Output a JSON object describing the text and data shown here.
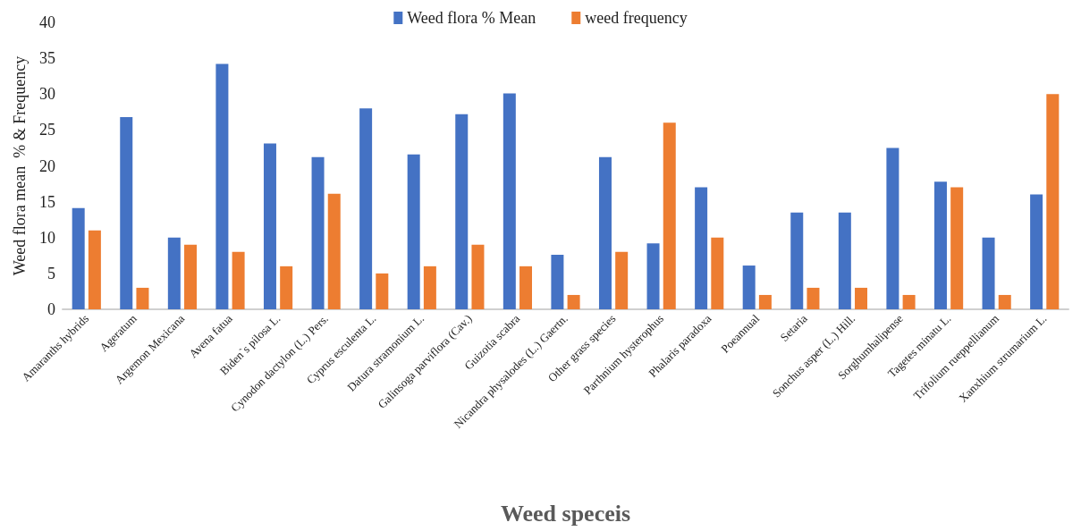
{
  "chart_data": {
    "type": "bar",
    "xlabel": "Weed speceis",
    "ylabel": "Weed flora mean  % & Frequency",
    "categories": [
      "Amaranths hybrids",
      "Ageratum",
      "Argemon Mexicana",
      "Avena fatua",
      "Biden`s pilosa L.",
      "Cynodon dactylon (L.) Pers.",
      "Cyprus esculenta L.",
      "Datura stramonium L.",
      "Galinsoga parviflora (Cav.)",
      "Guizotia scabra",
      "Nicandra physalodes (L.) Gaertn.",
      "Other grass species",
      "Parthnium hysterophus",
      "Phalaris paradoxa",
      "Poeannual",
      "Setaria",
      "Sonchus asper (L.) Hill.",
      "Sorghumhalipense",
      "Tagetes minatu L.",
      "Trifolium rueppellianum",
      "Xanxhium strumarium L."
    ],
    "series": [
      {
        "name": "Weed flora % Mean",
        "color": "#4472c4",
        "values": [
          14.1,
          26.8,
          10,
          34.2,
          23.1,
          21.2,
          28,
          21.6,
          27.2,
          30.1,
          7.6,
          21.2,
          9.2,
          17,
          6.1,
          13.5,
          13.5,
          22.5,
          17.8,
          10,
          16
        ]
      },
      {
        "name": "weed frequency",
        "color": "#ed7d31",
        "values": [
          11,
          3,
          9,
          8,
          6,
          16.1,
          5,
          6,
          9,
          6,
          2,
          8,
          26,
          10,
          2,
          3,
          3,
          2,
          17,
          2,
          30
        ]
      }
    ],
    "ylim": [
      0,
      40
    ],
    "yticks": [
      0,
      5,
      10,
      15,
      20,
      25,
      30,
      35,
      40
    ],
    "grid": false,
    "legend": "top"
  }
}
